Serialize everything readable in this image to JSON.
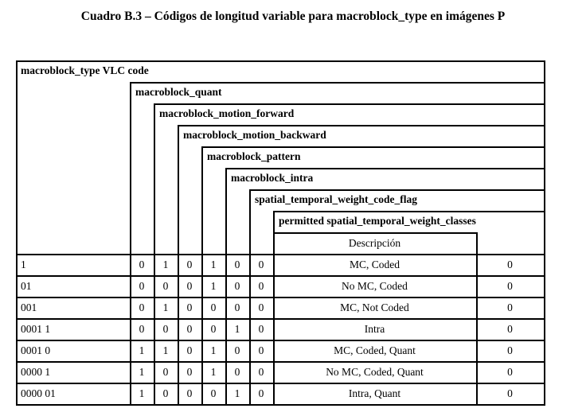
{
  "title": "Cuadro B.3 – Códigos de longitud variable para macroblock_type en imágenes P",
  "headers": {
    "code": "macroblock_type VLC code",
    "quant": "macroblock_quant",
    "forward": "macroblock_motion_forward",
    "backward": "macroblock_motion_backward",
    "pattern": "macroblock_pattern",
    "intra": "macroblock_intra",
    "stwc_flag": "spatial_temporal_weight_code_flag",
    "permitted": "permitted spatial_temporal_weight_classes",
    "description": "Descripción"
  },
  "rows": [
    {
      "code": "1",
      "bits": [
        "0",
        "1",
        "0",
        "1",
        "0",
        "0"
      ],
      "desc": "MC, Coded",
      "classes": "0"
    },
    {
      "code": "01",
      "bits": [
        "0",
        "0",
        "0",
        "1",
        "0",
        "0"
      ],
      "desc": "No MC, Coded",
      "classes": "0"
    },
    {
      "code": "001",
      "bits": [
        "0",
        "1",
        "0",
        "0",
        "0",
        "0"
      ],
      "desc": "MC, Not Coded",
      "classes": "0"
    },
    {
      "code": "0001 1",
      "bits": [
        "0",
        "0",
        "0",
        "0",
        "1",
        "0"
      ],
      "desc": "Intra",
      "classes": "0"
    },
    {
      "code": "0001 0",
      "bits": [
        "1",
        "1",
        "0",
        "1",
        "0",
        "0"
      ],
      "desc": "MC, Coded, Quant",
      "classes": "0"
    },
    {
      "code": "0000 1",
      "bits": [
        "1",
        "0",
        "0",
        "1",
        "0",
        "0"
      ],
      "desc": "No MC, Coded, Quant",
      "classes": "0"
    },
    {
      "code": "0000 01",
      "bits": [
        "1",
        "0",
        "0",
        "0",
        "1",
        "0"
      ],
      "desc": "Intra, Quant",
      "classes": "0"
    }
  ]
}
